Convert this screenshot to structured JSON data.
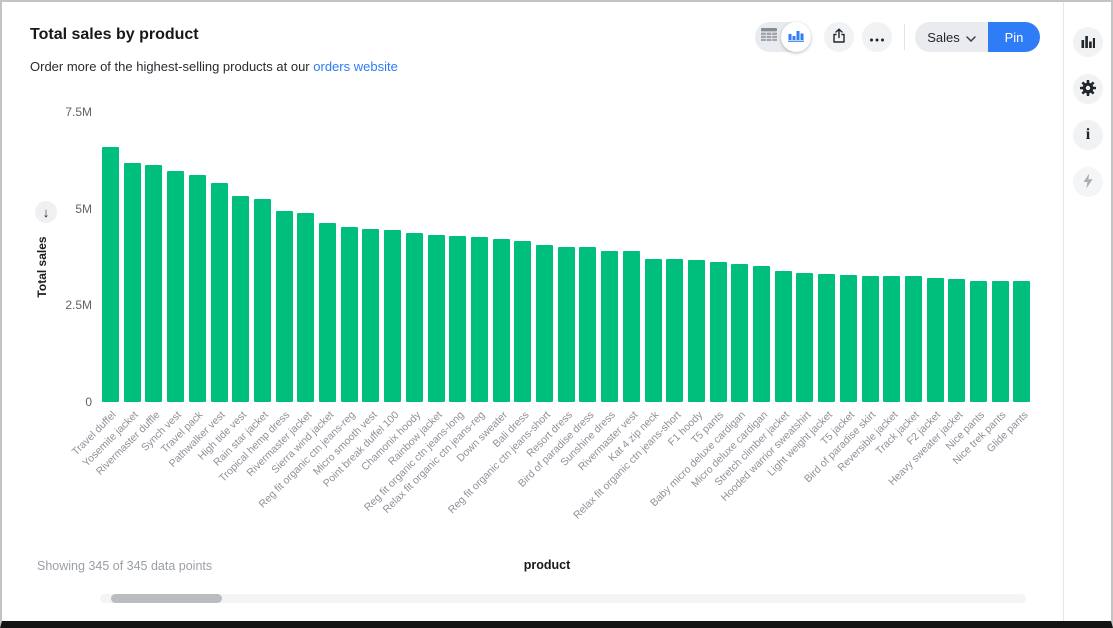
{
  "header": {
    "title": "Total sales by product",
    "subtitle_prefix": "Order more of the highest-selling products at our ",
    "subtitle_link": "orders website"
  },
  "toolbar": {
    "view_toggle": {
      "options": [
        "table-view",
        "chart-view"
      ],
      "selected": "chart-view"
    },
    "sales_label": "Sales",
    "pin_label": "Pin"
  },
  "icons": {
    "toolbar": [
      "table-view-icon",
      "bar-chart-view-icon",
      "share-icon",
      "ellipsis-icon",
      "chevron-down-icon"
    ],
    "right_rail": [
      "bar-chart-icon",
      "gear-icon",
      "info-icon",
      "lightning-icon"
    ],
    "sort_descending_glyph": "↓"
  },
  "colors": {
    "accent_blue": "#2e7cf6",
    "bar_green": "#00be7c"
  },
  "chart_data": {
    "type": "bar",
    "title": "Total sales by product",
    "xlabel": "product",
    "ylabel": "Total sales",
    "unit": "millions",
    "ylim_millions": [
      0,
      7.5
    ],
    "y_ticks": [
      "7.5M",
      "5M",
      "2.5M",
      "0"
    ],
    "y_tick_values_millions": [
      7.5,
      5,
      2.5,
      0
    ],
    "grid": false,
    "legend": false,
    "sort": "descending",
    "categories": [
      "Travel duffel",
      "Yosemite jacket",
      "Rivermaster duffle",
      "Synch vest",
      "Travel pack",
      "Pathwalker vest",
      "High tide vest",
      "Rain star jacket",
      "Tropical hemp dress",
      "Rivermaster jacket",
      "Sierra wind jacket",
      "Reg fit organic ctn jeans-reg",
      "Micro smooth vest",
      "Point break duffel 100",
      "Chamonix hoody",
      "Rainbow jacket",
      "Reg fit organic ctn jeans-long",
      "Relax fit organic ctn jeans-reg",
      "Down sweater",
      "Bali dress",
      "Reg fit organic ctn jeans-short",
      "Resort dress",
      "Bird of paradise dress",
      "Sunshine dress",
      "Rivermaster vest",
      "Kat 4 zip neck",
      "Relax fit organic ctn jeans-short",
      "F1 hoody",
      "T5 pants",
      "Baby micro deluxe cardigan",
      "Micro deluxe cardigan",
      "Stretch climber jacket",
      "Hooded warrior sweatshirt",
      "Light weight jacket",
      "T5 jacket",
      "Bird of paradise skirt",
      "Reversible jacket",
      "Track jacket",
      "F2 jacket",
      "Heavy sweater jacket",
      "Nice pants",
      "Nice trek pants",
      "Glide pants"
    ],
    "values_millions": [
      6.59,
      6.19,
      6.14,
      5.97,
      5.88,
      5.67,
      5.34,
      5.24,
      4.93,
      4.9,
      4.64,
      4.52,
      4.48,
      4.45,
      4.38,
      4.32,
      4.3,
      4.27,
      4.21,
      4.17,
      4.05,
      4.02,
      4.01,
      3.9,
      3.9,
      3.71,
      3.71,
      3.68,
      3.62,
      3.56,
      3.51,
      3.38,
      3.34,
      3.3,
      3.28,
      3.26,
      3.26,
      3.26,
      3.21,
      3.19,
      3.13,
      3.13,
      3.13
    ]
  },
  "footer": {
    "showing_text": "Showing 345 of 345 data points",
    "x_axis_label": "product"
  }
}
